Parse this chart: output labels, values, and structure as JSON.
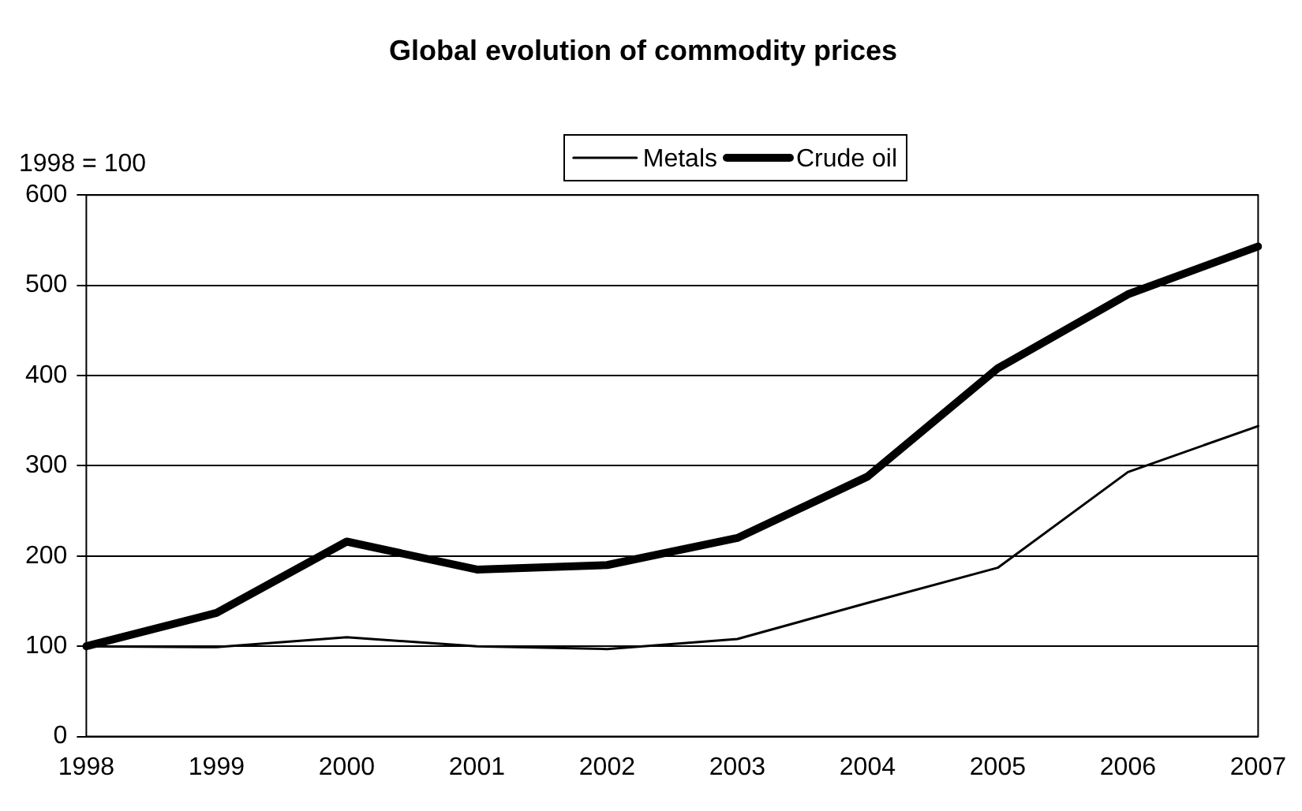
{
  "chart_data": {
    "type": "line",
    "title": "Global evolution of commodity prices",
    "ylabel": "1998 = 100",
    "categories": [
      "1998",
      "1999",
      "2000",
      "2001",
      "2002",
      "2003",
      "2004",
      "2005",
      "2006",
      "2007"
    ],
    "series": [
      {
        "name": "Metals",
        "color": "#000000",
        "values": [
          100,
          99,
          110,
          100,
          97,
          108,
          148,
          187,
          293,
          344
        ]
      },
      {
        "name": "Crude oil",
        "color": "#000000",
        "values": [
          100,
          137,
          216,
          185,
          190,
          220,
          288,
          408,
          490,
          543
        ]
      }
    ],
    "ylim": [
      0,
      600
    ],
    "yticks": [
      0,
      100,
      200,
      300,
      400,
      500,
      600
    ],
    "grid": "y",
    "legend": "top",
    "marker": "none",
    "line_style": "solid"
  }
}
